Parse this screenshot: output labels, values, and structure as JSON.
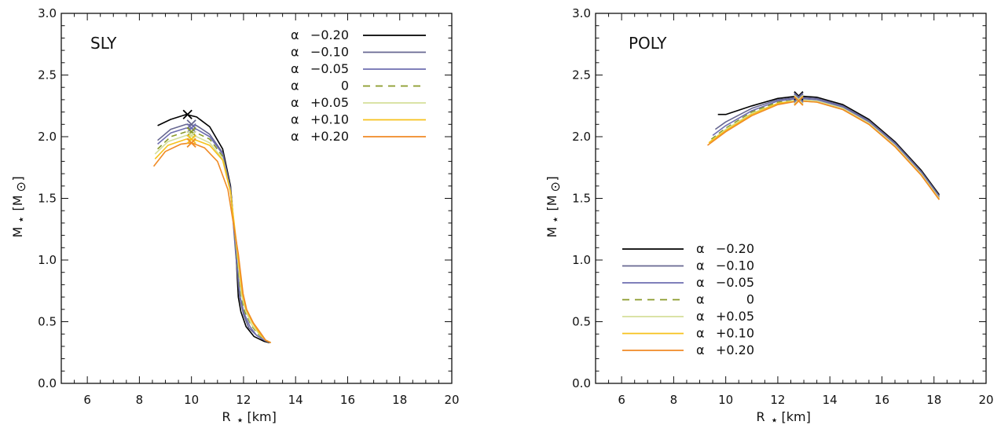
{
  "chart_data": [
    {
      "type": "line",
      "title": "SLY",
      "xlabel": "R",
      "xlabel_sub": "⋆",
      "xlabel_unit": "[km]",
      "ylabel": "M",
      "ylabel_sub": "⋆",
      "ylabel_unit_open": "[M",
      "ylabel_unit_sub": "⊙",
      "ylabel_unit_close": "]",
      "xlim": [
        5,
        20
      ],
      "ylim": [
        0,
        3
      ],
      "xticks": [
        6,
        8,
        10,
        12,
        14,
        16,
        18,
        20
      ],
      "yticks": [
        0,
        0.5,
        1,
        1.5,
        2,
        2.5,
        3
      ],
      "ytick_labels": [
        "0.0",
        "0.5",
        "1.0",
        "1.5",
        "2.0",
        "2.5",
        "3.0"
      ],
      "legend_position": "top-right",
      "series": [
        {
          "name": "α −0.20",
          "alpha": "α",
          "value": "−0.20",
          "color": "#000000",
          "dash": false,
          "x": [
            8.7,
            9.2,
            9.8,
            10.2,
            10.7,
            11.2,
            11.5,
            11.7,
            11.8,
            11.9,
            12.1,
            12.4,
            12.8,
            13.0
          ],
          "y": [
            2.09,
            2.14,
            2.18,
            2.16,
            2.08,
            1.9,
            1.6,
            1.1,
            0.7,
            0.58,
            0.46,
            0.38,
            0.34,
            0.33
          ],
          "marker": [
            9.85,
            2.18
          ]
        },
        {
          "name": "α −0.10",
          "alpha": "α",
          "value": "−0.10",
          "color": "#676791",
          "dash": false,
          "x": [
            8.7,
            9.2,
            9.8,
            10.2,
            10.7,
            11.2,
            11.5,
            11.7,
            11.85,
            12.0,
            12.2,
            12.5,
            12.8,
            13.05
          ],
          "y": [
            1.97,
            2.06,
            2.1,
            2.09,
            2.02,
            1.87,
            1.58,
            1.05,
            0.7,
            0.56,
            0.45,
            0.39,
            0.35,
            0.33
          ],
          "marker": [
            10.0,
            2.1
          ]
        },
        {
          "name": "α −0.05",
          "alpha": "α",
          "value": "−0.05",
          "color": "#6e6eb0",
          "dash": false,
          "x": [
            8.7,
            9.2,
            9.8,
            10.2,
            10.7,
            11.2,
            11.5,
            11.72,
            11.87,
            12.02,
            12.25,
            12.5,
            12.8,
            13.05
          ],
          "y": [
            1.94,
            2.03,
            2.07,
            2.06,
            2.0,
            1.86,
            1.56,
            1.05,
            0.7,
            0.57,
            0.46,
            0.39,
            0.35,
            0.33
          ],
          "marker": [
            10.0,
            2.07
          ]
        },
        {
          "name": "α 0",
          "alpha": "α",
          "value": "0",
          "color": "#8a9a2a",
          "dash": true,
          "x": [
            8.7,
            9.2,
            9.8,
            10.2,
            10.7,
            11.2,
            11.5,
            11.74,
            11.9,
            12.05,
            12.3,
            12.55,
            12.85,
            13.05
          ],
          "y": [
            1.9,
            2.0,
            2.04,
            2.03,
            1.98,
            1.84,
            1.55,
            1.05,
            0.72,
            0.58,
            0.47,
            0.4,
            0.35,
            0.33
          ],
          "marker": [
            10.0,
            2.04
          ]
        },
        {
          "name": "α +0.05",
          "alpha": "α",
          "value": "+0.05",
          "color": "#d4df9a",
          "dash": false,
          "x": [
            8.6,
            9.1,
            9.8,
            10.2,
            10.7,
            11.2,
            11.5,
            11.76,
            11.92,
            12.08,
            12.3,
            12.6,
            12.85,
            13.05
          ],
          "y": [
            1.86,
            1.96,
            2.01,
            2.0,
            1.95,
            1.82,
            1.55,
            1.05,
            0.72,
            0.59,
            0.48,
            0.4,
            0.35,
            0.33
          ],
          "marker": [
            10.0,
            2.01
          ]
        },
        {
          "name": "α +0.10",
          "alpha": "α",
          "value": "+0.10",
          "color": "#f6c21c",
          "dash": false,
          "x": [
            8.6,
            9.1,
            9.8,
            10.2,
            10.7,
            11.2,
            11.5,
            11.78,
            11.95,
            12.1,
            12.35,
            12.6,
            12.85,
            13.05
          ],
          "y": [
            1.82,
            1.93,
            1.98,
            1.97,
            1.93,
            1.81,
            1.55,
            1.05,
            0.73,
            0.6,
            0.49,
            0.41,
            0.35,
            0.33
          ],
          "marker": [
            10.0,
            1.98
          ]
        },
        {
          "name": "α +0.20",
          "alpha": "α",
          "value": "+0.20",
          "color": "#f08a24",
          "dash": false,
          "x": [
            8.55,
            9.0,
            9.6,
            10.0,
            10.5,
            11.0,
            11.4,
            11.8,
            11.98,
            12.12,
            12.38,
            12.65,
            12.85,
            13.05
          ],
          "y": [
            1.76,
            1.88,
            1.94,
            1.95,
            1.91,
            1.8,
            1.57,
            1.05,
            0.73,
            0.6,
            0.49,
            0.41,
            0.35,
            0.33
          ],
          "marker": [
            10.0,
            1.95
          ]
        }
      ]
    },
    {
      "type": "line",
      "title": "POLY",
      "xlabel": "R",
      "xlabel_sub": "⋆",
      "xlabel_unit": "[km]",
      "ylabel": "M",
      "ylabel_sub": "⋆",
      "ylabel_unit_open": "[M",
      "ylabel_unit_sub": "⊙",
      "ylabel_unit_close": "]",
      "xlim": [
        5,
        20
      ],
      "ylim": [
        0,
        3
      ],
      "xticks": [
        6,
        8,
        10,
        12,
        14,
        16,
        18,
        20
      ],
      "yticks": [
        0,
        0.5,
        1,
        1.5,
        2,
        2.5,
        3
      ],
      "ytick_labels": [
        "0.0",
        "0.5",
        "1.0",
        "1.5",
        "2.0",
        "2.5",
        "3.0"
      ],
      "legend_position": "bottom-left",
      "series": [
        {
          "name": "α −0.20",
          "alpha": "α",
          "value": "−0.20",
          "color": "#000000",
          "dash": false,
          "x": [
            9.7,
            10.0,
            11.0,
            12.0,
            12.8,
            13.5,
            14.5,
            15.5,
            16.5,
            17.5,
            18.2
          ],
          "y": [
            2.18,
            2.18,
            2.25,
            2.31,
            2.33,
            2.32,
            2.26,
            2.14,
            1.96,
            1.73,
            1.53
          ],
          "marker": [
            12.8,
            2.33
          ]
        },
        {
          "name": "α −0.10",
          "alpha": "α",
          "value": "−0.10",
          "color": "#676791",
          "dash": false,
          "x": [
            9.6,
            10.0,
            11.0,
            12.0,
            12.8,
            13.5,
            14.5,
            15.5,
            16.5,
            17.5,
            18.2
          ],
          "y": [
            2.06,
            2.12,
            2.23,
            2.3,
            2.32,
            2.31,
            2.25,
            2.13,
            1.95,
            1.72,
            1.52
          ],
          "marker": [
            12.8,
            2.32
          ]
        },
        {
          "name": "α −0.05",
          "alpha": "α",
          "value": "−0.05",
          "color": "#6e6eb0",
          "dash": false,
          "x": [
            9.5,
            10.0,
            11.0,
            12.0,
            12.8,
            13.5,
            14.5,
            15.5,
            16.5,
            17.5,
            18.2
          ],
          "y": [
            2.01,
            2.09,
            2.21,
            2.29,
            2.31,
            2.3,
            2.24,
            2.12,
            1.94,
            1.71,
            1.51
          ],
          "marker": [
            12.8,
            2.31
          ]
        },
        {
          "name": "α 0",
          "alpha": "α",
          "value": "0",
          "color": "#8a9a2a",
          "dash": true,
          "x": [
            9.45,
            10.0,
            11.0,
            12.0,
            12.8,
            13.5,
            14.5,
            15.5,
            16.5,
            17.5,
            18.2
          ],
          "y": [
            1.98,
            2.07,
            2.2,
            2.28,
            2.3,
            2.29,
            2.23,
            2.11,
            1.93,
            1.7,
            1.5
          ],
          "marker": [
            12.8,
            2.3
          ]
        },
        {
          "name": "α +0.05",
          "alpha": "α",
          "value": "+0.05",
          "color": "#d4df9a",
          "dash": false,
          "x": [
            9.4,
            10.0,
            11.0,
            12.0,
            12.8,
            13.5,
            14.5,
            15.5,
            16.5,
            17.5,
            18.2
          ],
          "y": [
            1.96,
            2.06,
            2.19,
            2.27,
            2.3,
            2.29,
            2.23,
            2.11,
            1.93,
            1.7,
            1.5
          ],
          "marker": [
            12.8,
            2.3
          ]
        },
        {
          "name": "α +0.10",
          "alpha": "α",
          "value": "+0.10",
          "color": "#f6c21c",
          "dash": false,
          "x": [
            9.35,
            10.0,
            11.0,
            12.0,
            12.8,
            13.5,
            14.5,
            15.5,
            16.5,
            17.5,
            18.2
          ],
          "y": [
            1.95,
            2.05,
            2.18,
            2.27,
            2.29,
            2.28,
            2.22,
            2.1,
            1.92,
            1.69,
            1.49
          ],
          "marker": [
            12.8,
            2.29
          ]
        },
        {
          "name": "α +0.20",
          "alpha": "α",
          "value": "+0.20",
          "color": "#f08a24",
          "dash": false,
          "x": [
            9.3,
            10.0,
            11.0,
            12.0,
            12.8,
            13.5,
            14.5,
            15.5,
            16.5,
            17.5,
            18.2
          ],
          "y": [
            1.93,
            2.04,
            2.17,
            2.26,
            2.29,
            2.28,
            2.22,
            2.1,
            1.92,
            1.69,
            1.49
          ],
          "marker": [
            12.8,
            2.29
          ]
        }
      ]
    }
  ]
}
